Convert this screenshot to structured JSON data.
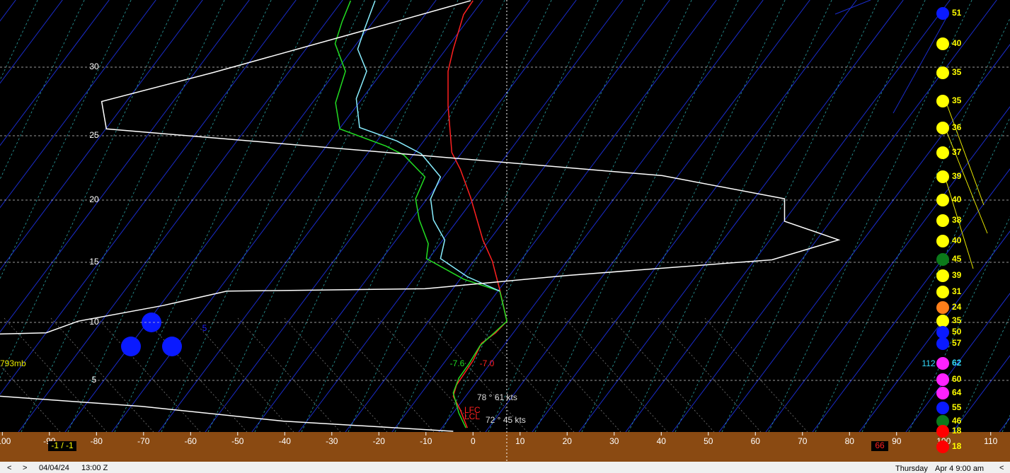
{
  "chart_data": {
    "type": "skewt",
    "xlim": [
      -100.5,
      114.1
    ],
    "xticks": [
      -100,
      -90,
      -80,
      -70,
      -60,
      -50,
      -40,
      -30,
      -20,
      -10,
      0,
      10,
      20,
      30,
      40,
      50,
      60,
      70,
      80,
      90,
      100,
      110
    ],
    "ylim": [
      0,
      35
    ],
    "yticks": [
      5,
      10,
      15,
      20,
      25,
      30
    ],
    "grid": true,
    "series": [
      {
        "color": "#ff2020",
        "x": [
          0,
          -2.0,
          -4.2,
          -5.3,
          -5.3,
          -4.5,
          -2.7,
          -0.5,
          2.1,
          4.1,
          5.7,
          7.2,
          4.8,
          1.8,
          0,
          -2.0,
          -3.5,
          -4.2,
          -2.7,
          -1.2
        ],
        "values": [
          34.8,
          33.8,
          31.3,
          29.7,
          27.2,
          23.7,
          22.4,
          20.2,
          16.8,
          15.1,
          12.7,
          10.1,
          9.1,
          8.2,
          6.7,
          5.5,
          4.6,
          3.6,
          2.4,
          0.8
        ]
      },
      {
        "color": "#22dd22",
        "x": [
          -26.0,
          -27.8,
          -29.3,
          -27.1,
          -29.2,
          -28.3,
          -18.5,
          -14.7,
          -10.2,
          -12.2,
          -11.4,
          -9.5,
          -9.9,
          -2.0,
          5.7,
          7.2,
          4.5,
          1.5,
          -0.9,
          -3.0,
          -4.2,
          -3.0,
          -1.5
        ],
        "values": [
          34.8,
          33.3,
          31.7,
          29.7,
          27.4,
          25.5,
          24.2,
          23.5,
          21.8,
          20.1,
          18.4,
          16.5,
          15.3,
          13.6,
          12.6,
          10.1,
          9.1,
          8.0,
          6.4,
          5.2,
          3.9,
          2.1,
          0.8
        ]
      },
      {
        "color": "#88eeff",
        "x": [
          -20.8,
          -23.0,
          -24.5,
          -22.6,
          -24.8,
          -24.1,
          -16.2,
          -11.0,
          -6.9,
          -9.0,
          -8.4,
          -6.0,
          -6.9,
          -1.2,
          5.7
        ],
        "values": [
          34.8,
          32.8,
          31.3,
          29.7,
          27.7,
          25.6,
          24.6,
          23.6,
          21.8,
          20.1,
          18.4,
          16.8,
          15.3,
          13.8,
          12.6
        ]
      },
      {
        "color": "#ffffff",
        "x": [
          -100.5,
          -90.7,
          -83.9,
          -65.9,
          -52.3,
          -10.2,
          19.8,
          63.5,
          77.7,
          66.2,
          66.2,
          40.2,
          -77.9,
          -78.9,
          -55.3,
          -16.2,
          -0.5
        ],
        "values": [
          9.0,
          9.1,
          10.1,
          11.4,
          12.6,
          12.8,
          13.9,
          15.2,
          16.8,
          18.3,
          20.1,
          21.9,
          25.5,
          27.5,
          29.6,
          33.3,
          34.8
        ]
      },
      {
        "color": "#ffffff",
        "x": [
          -100.5,
          -70.4,
          -40.3,
          -4.2
        ],
        "values": [
          3.6,
          2.7,
          1.4,
          0.5
        ]
      }
    ],
    "winds": [
      {
        "speed": 51,
        "color": "#0a1aff"
      },
      {
        "speed": 40,
        "color": "#ffff00"
      },
      {
        "speed": 35,
        "color": "#ffff00"
      },
      {
        "speed": 35,
        "color": "#ffff00"
      },
      {
        "speed": 36,
        "color": "#ffff00"
      },
      {
        "speed": 37,
        "color": "#ffff00"
      },
      {
        "speed": 39,
        "color": "#ffff00"
      },
      {
        "speed": 40,
        "color": "#ffff00"
      },
      {
        "speed": 38,
        "color": "#ffff00"
      },
      {
        "speed": 40,
        "color": "#ffff00"
      },
      {
        "speed": 45,
        "color": "#0b7a1a"
      },
      {
        "speed": 39,
        "color": "#ffff00"
      },
      {
        "speed": 31,
        "color": "#ffff00"
      },
      {
        "speed": 24,
        "color": "#ff7f1a"
      },
      {
        "speed": 35,
        "color": "#ffff00"
      },
      {
        "speed": 50,
        "color": "#0a1aff"
      },
      {
        "speed": 57,
        "color": "#0a1aff"
      },
      {
        "speed": 62,
        "color": "#ff22ff"
      },
      {
        "speed": 60,
        "color": "#ff22ff"
      },
      {
        "speed": 64,
        "color": "#ff22ff"
      },
      {
        "speed": 55,
        "color": "#0a1aff"
      },
      {
        "speed": 46,
        "color": "#0b7a1a"
      },
      {
        "speed": 18,
        "color": "#ff0000"
      },
      {
        "speed": 18,
        "color": "#ff0000"
      }
    ],
    "annotations": [
      {
        "text": "793mb",
        "color": "#e8e800"
      },
      {
        "text": "5",
        "color": "#2020ff"
      },
      {
        "text": "-7.6",
        "color": "#22dd22"
      },
      {
        "text": "-7.0",
        "color": "#ff2020"
      },
      {
        "text": "78 ° 61 kts",
        "color": "#dddddd"
      },
      {
        "text": "72 ° 45 kts",
        "color": "#dddddd"
      },
      {
        "text": "LFC",
        "color": "#ff2020"
      },
      {
        "text": "LCL",
        "color": "#ff2020"
      },
      {
        "text": "112",
        "color": "#33ddff"
      }
    ],
    "surface_labels": [
      {
        "text": "-1 / -1",
        "color": "#ffff00"
      },
      {
        "text": "66",
        "color": "#ff2020"
      }
    ]
  },
  "status_bar": {
    "date": "04/04/24",
    "time": "13:00 Z",
    "day": "Thursday",
    "local": "Apr 4  9:00 am"
  }
}
